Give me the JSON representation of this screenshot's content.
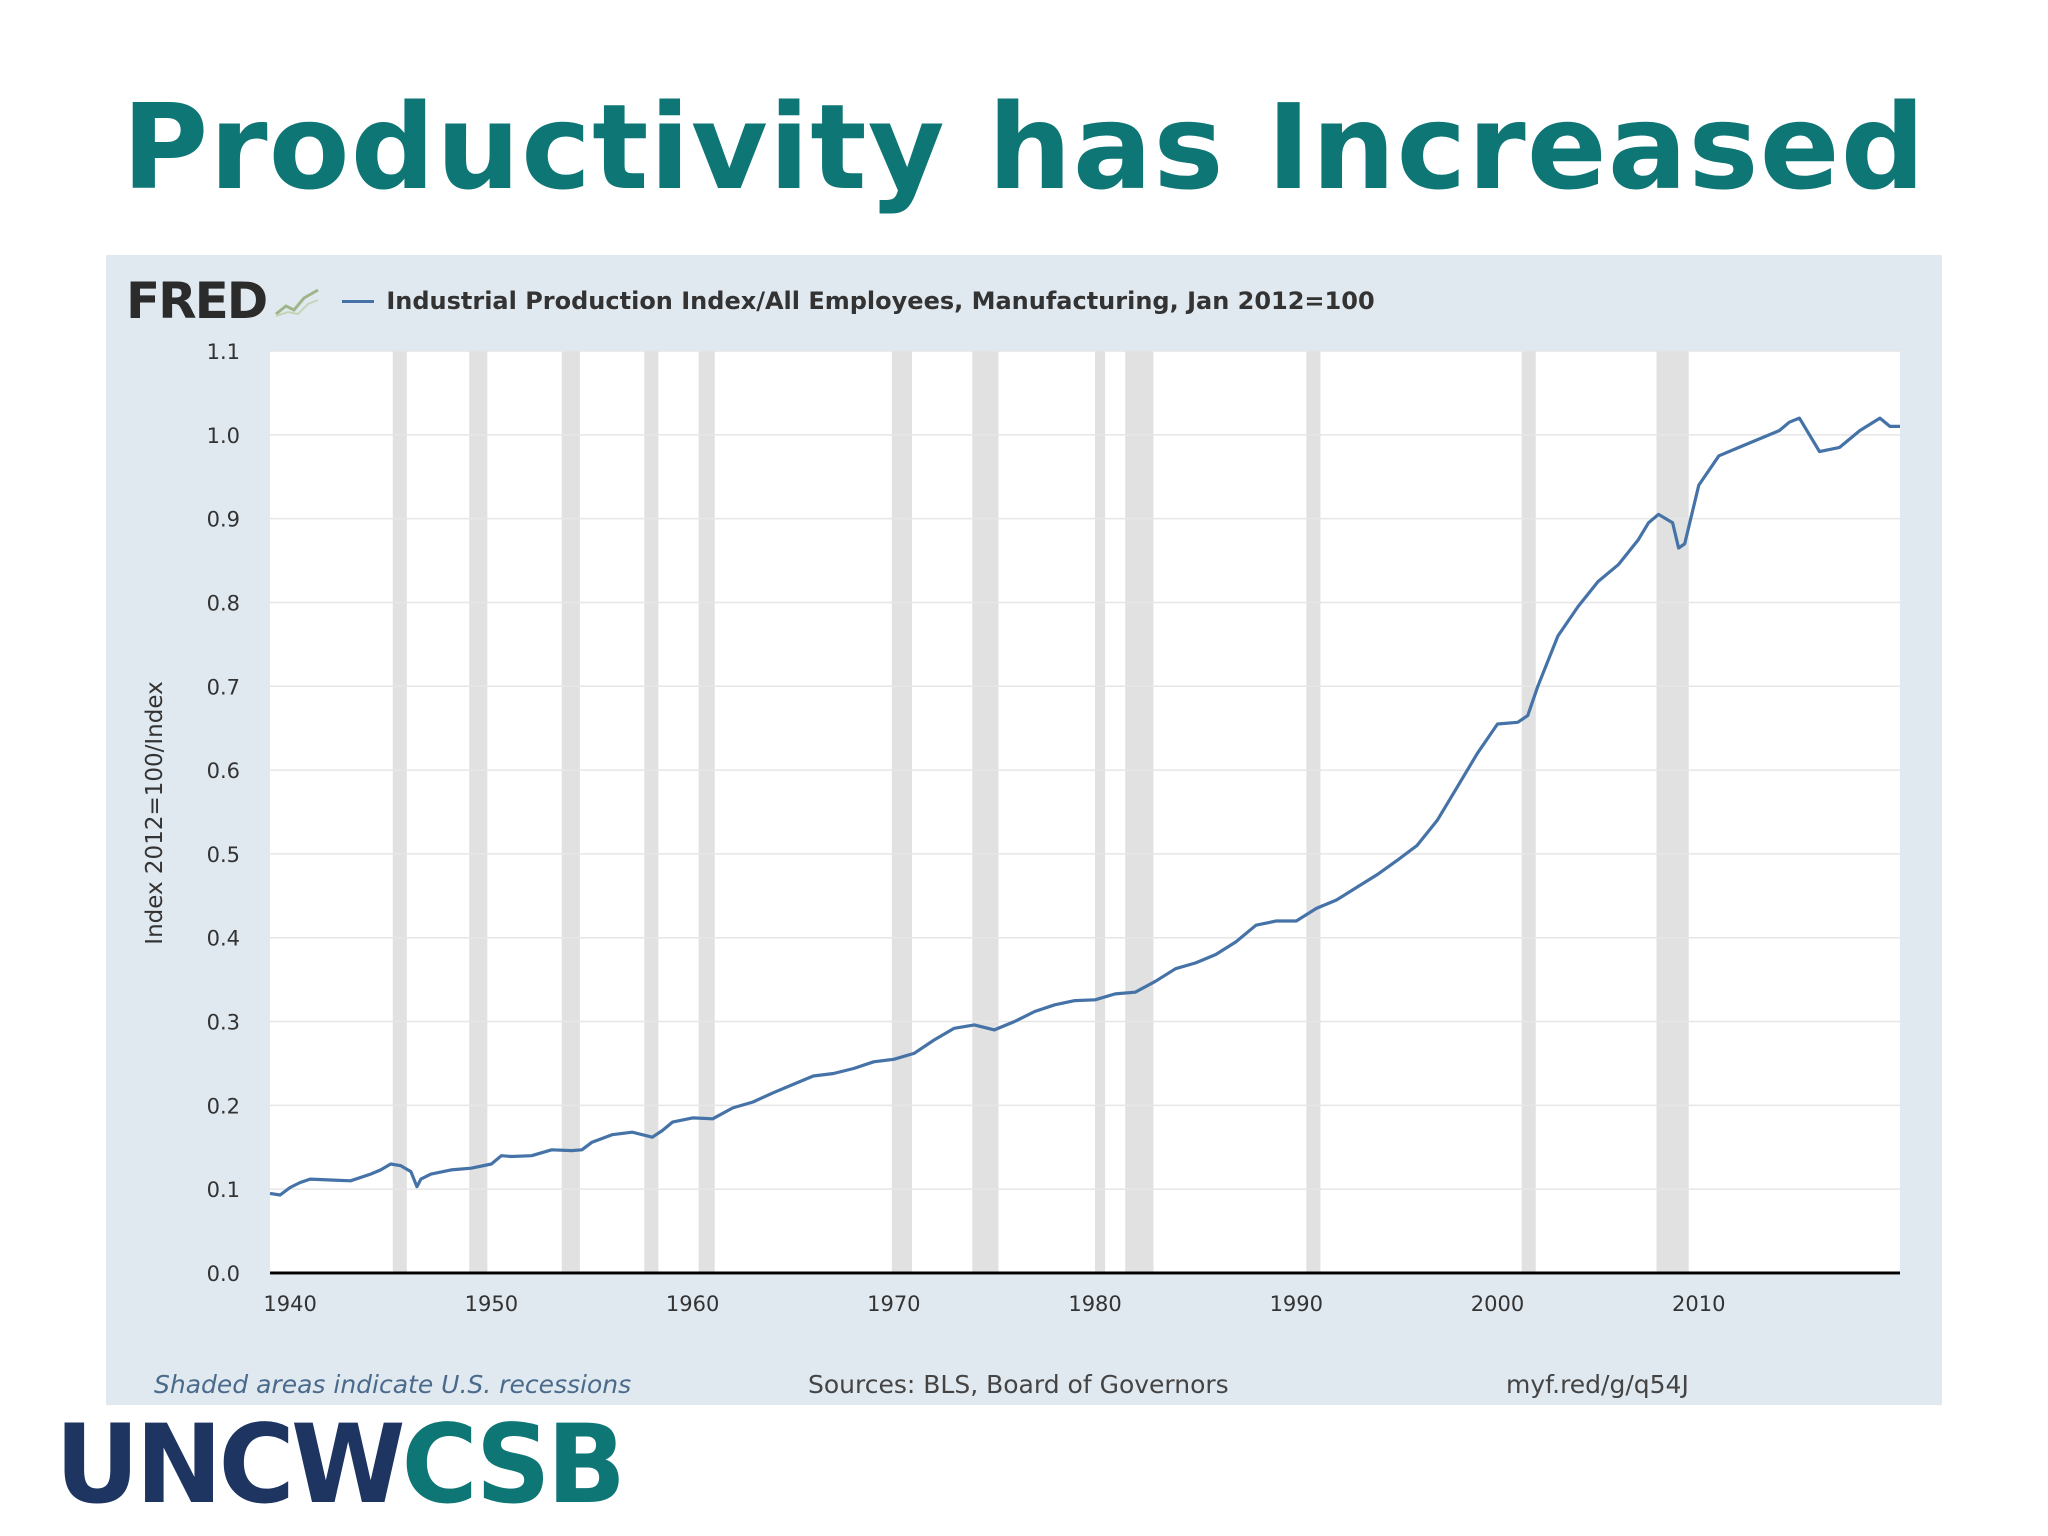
{
  "slide": {
    "title": "Productivity has Increased",
    "logo_part1": "UNCW",
    "logo_part2": "CSB"
  },
  "colors": {
    "title": "#0f7676",
    "logo_dark": "#1e3461",
    "logo_teal": "#0f7676",
    "series": "#4572a7",
    "frame": "#e1e9f0",
    "recession": "#e1e1e1"
  },
  "chart_header": {
    "brand": "FRED",
    "brand_icon": "fred-chart-icon"
  },
  "chart_data": {
    "type": "line",
    "title": "",
    "xlabel": "",
    "ylabel": "Index 2012=100/Index",
    "xlim": [
      1939,
      2020
    ],
    "ylim": [
      0.0,
      1.1
    ],
    "grid": true,
    "legend_position": "top-left",
    "yticks": [
      "0.0",
      "0.1",
      "0.2",
      "0.3",
      "0.4",
      "0.5",
      "0.6",
      "0.7",
      "0.8",
      "0.9",
      "1.0",
      "1.1"
    ],
    "xticks": [
      "1940",
      "1950",
      "1960",
      "1970",
      "1980",
      "1990",
      "2000",
      "2010"
    ],
    "xtick_values": [
      1940,
      1950,
      1960,
      1970,
      1980,
      1990,
      2000,
      2010
    ],
    "recessions": [
      [
        1945.1,
        1945.8
      ],
      [
        1948.9,
        1949.8
      ],
      [
        1953.5,
        1954.4
      ],
      [
        1957.6,
        1958.3
      ],
      [
        1960.3,
        1961.1
      ],
      [
        1969.9,
        1970.9
      ],
      [
        1973.9,
        1975.2
      ],
      [
        1980.0,
        1980.5
      ],
      [
        1981.5,
        1982.9
      ],
      [
        1990.5,
        1991.2
      ],
      [
        2001.2,
        2001.9
      ],
      [
        2007.9,
        2009.5
      ]
    ],
    "series": [
      {
        "name": "Industrial Production Index/All Employees, Manufacturing, Jan 2012=100",
        "x": [
          1939.0,
          1939.5,
          1940.0,
          1940.5,
          1941.0,
          1942.0,
          1943.0,
          1944.0,
          1944.5,
          1945.0,
          1945.5,
          1946.0,
          1946.3,
          1946.5,
          1947.0,
          1948.0,
          1949.0,
          1950.0,
          1950.5,
          1951.0,
          1952.0,
          1953.0,
          1954.0,
          1954.5,
          1955.0,
          1956.0,
          1957.0,
          1958.0,
          1958.5,
          1959.0,
          1960.0,
          1961.0,
          1962.0,
          1963.0,
          1964.0,
          1965.0,
          1966.0,
          1967.0,
          1968.0,
          1969.0,
          1970.0,
          1971.0,
          1972.0,
          1973.0,
          1974.0,
          1975.0,
          1976.0,
          1977.0,
          1978.0,
          1979.0,
          1980.0,
          1981.0,
          1982.0,
          1983.0,
          1984.0,
          1985.0,
          1986.0,
          1987.0,
          1988.0,
          1989.0,
          1990.0,
          1991.0,
          1992.0,
          1993.0,
          1994.0,
          1995.0,
          1996.0,
          1997.0,
          1998.0,
          1999.0,
          2000.0,
          2001.0,
          2001.5,
          2002.0,
          2003.0,
          2004.0,
          2005.0,
          2006.0,
          2007.0,
          2007.5,
          2008.0,
          2008.7,
          2009.0,
          2009.3,
          2010.0,
          2011.0,
          2012.0,
          2013.0,
          2014.0,
          2014.5,
          2015.0,
          2016.0,
          2017.0,
          2018.0,
          2019.0,
          2019.5,
          2020.0
        ],
        "y": [
          0.095,
          0.093,
          0.102,
          0.108,
          0.112,
          0.111,
          0.11,
          0.118,
          0.123,
          0.13,
          0.128,
          0.121,
          0.103,
          0.112,
          0.118,
          0.123,
          0.125,
          0.13,
          0.14,
          0.139,
          0.14,
          0.147,
          0.146,
          0.147,
          0.156,
          0.165,
          0.168,
          0.162,
          0.17,
          0.18,
          0.185,
          0.184,
          0.197,
          0.204,
          0.215,
          0.225,
          0.235,
          0.238,
          0.244,
          0.252,
          0.255,
          0.262,
          0.278,
          0.292,
          0.296,
          0.29,
          0.3,
          0.312,
          0.32,
          0.325,
          0.326,
          0.333,
          0.335,
          0.348,
          0.363,
          0.37,
          0.38,
          0.395,
          0.415,
          0.42,
          0.42,
          0.435,
          0.445,
          0.46,
          0.475,
          0.492,
          0.51,
          0.54,
          0.58,
          0.62,
          0.655,
          0.657,
          0.665,
          0.7,
          0.76,
          0.795,
          0.825,
          0.845,
          0.875,
          0.895,
          0.905,
          0.895,
          0.865,
          0.87,
          0.94,
          0.975,
          0.985,
          0.995,
          1.005,
          1.015,
          1.02,
          0.98,
          0.985,
          1.005,
          1.02,
          1.01,
          1.01
        ]
      }
    ],
    "footer": {
      "recession_note": "Shaded areas indicate U.S. recessions",
      "sources": "Sources: BLS, Board of Governors",
      "link": "myf.red/g/q54J"
    }
  }
}
